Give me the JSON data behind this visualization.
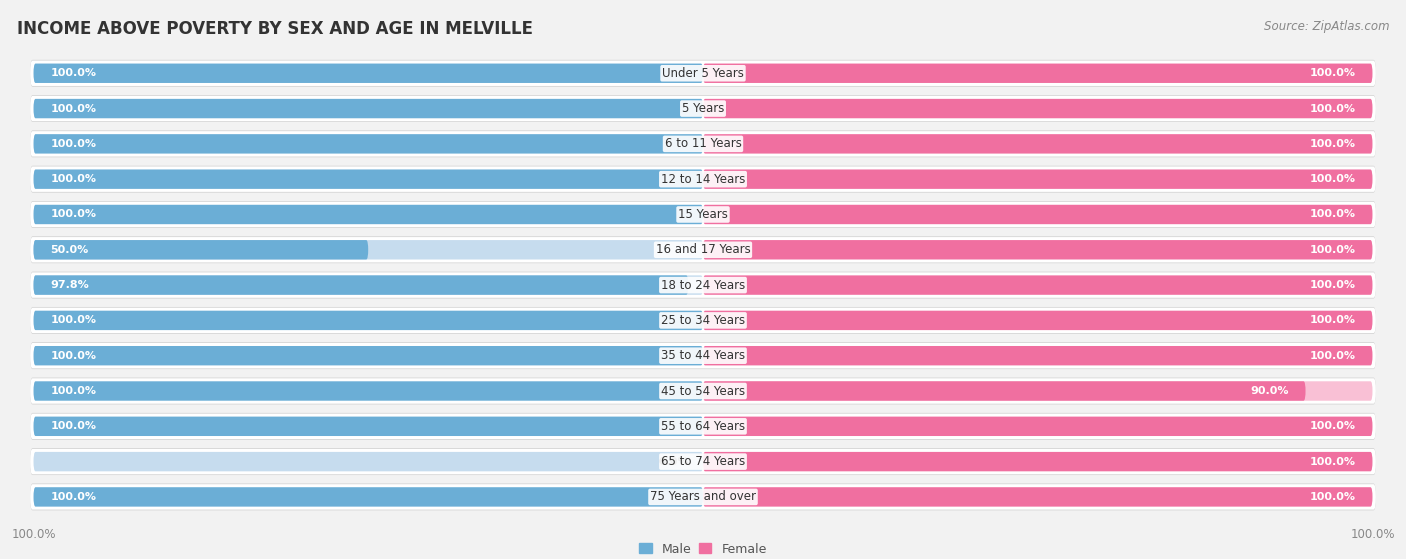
{
  "title": "INCOME ABOVE POVERTY BY SEX AND AGE IN MELVILLE",
  "source": "Source: ZipAtlas.com",
  "categories": [
    "Under 5 Years",
    "5 Years",
    "6 to 11 Years",
    "12 to 14 Years",
    "15 Years",
    "16 and 17 Years",
    "18 to 24 Years",
    "25 to 34 Years",
    "35 to 44 Years",
    "45 to 54 Years",
    "55 to 64 Years",
    "65 to 74 Years",
    "75 Years and over"
  ],
  "male": [
    100.0,
    100.0,
    100.0,
    100.0,
    100.0,
    50.0,
    97.8,
    100.0,
    100.0,
    100.0,
    100.0,
    0.0,
    100.0
  ],
  "female": [
    100.0,
    100.0,
    100.0,
    100.0,
    100.0,
    100.0,
    100.0,
    100.0,
    100.0,
    90.0,
    100.0,
    100.0,
    100.0
  ],
  "male_color": "#6baed6",
  "male_bg_color": "#c6dcee",
  "female_color": "#f06fa0",
  "female_bg_color": "#f9c0d5",
  "row_bg_color": "#e8e8e8",
  "bg_color": "#f2f2f2",
  "title_fontsize": 12,
  "label_fontsize": 8.5,
  "tick_fontsize": 8.5,
  "source_fontsize": 8.5,
  "legend_fontsize": 9,
  "value_fontsize": 8
}
